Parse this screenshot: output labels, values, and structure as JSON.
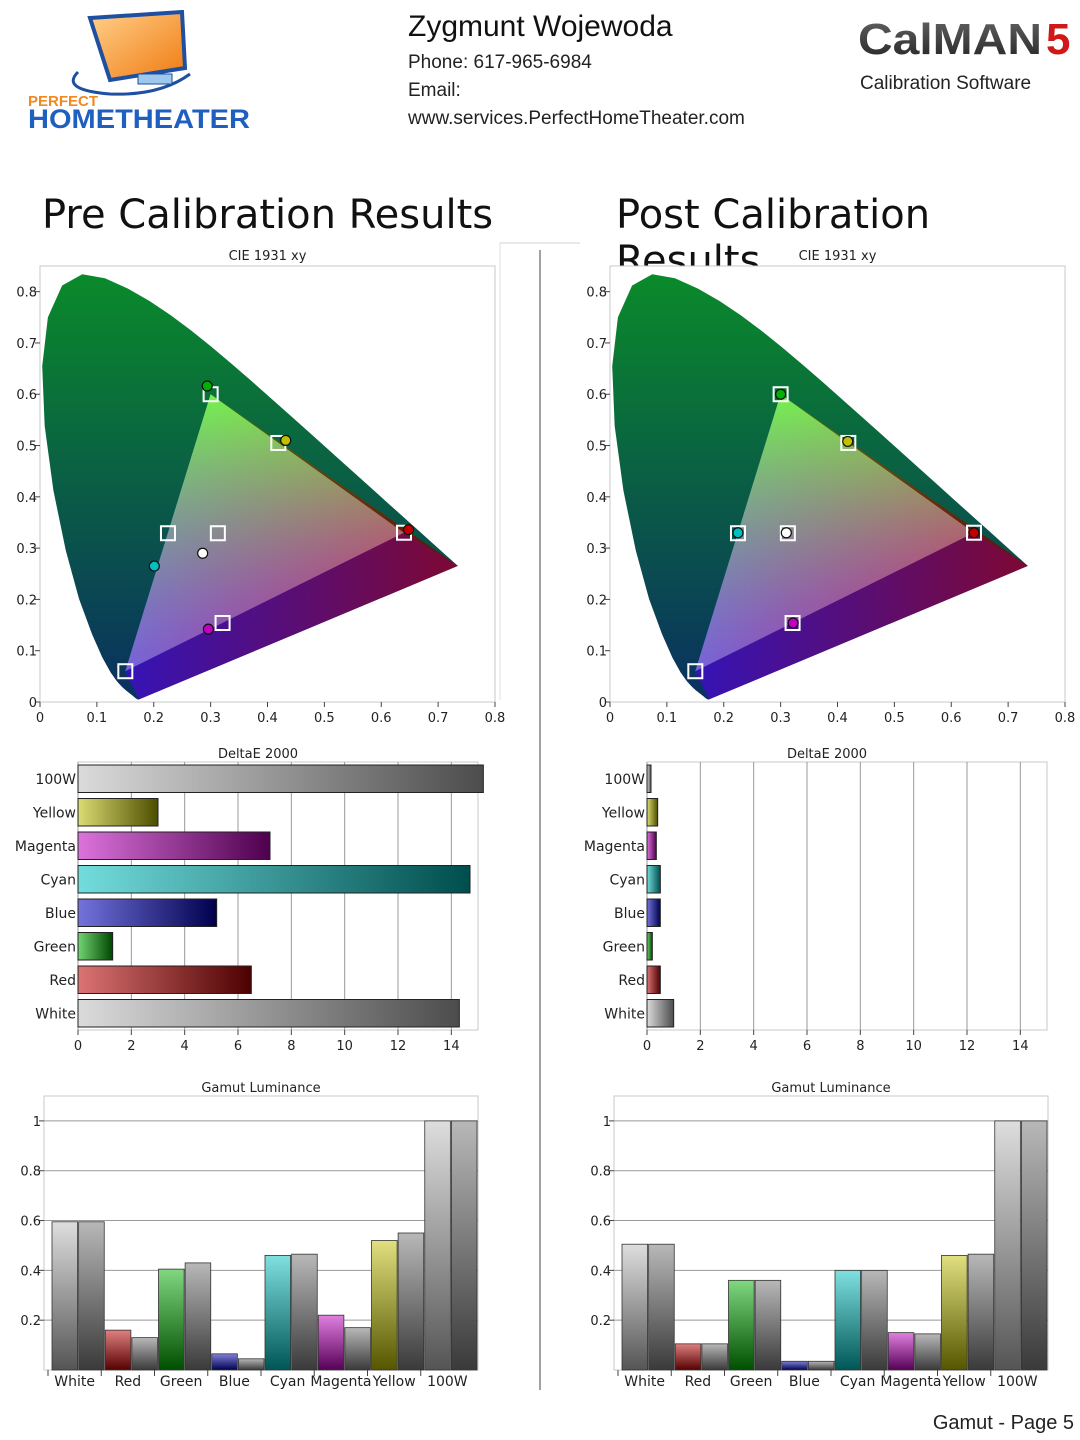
{
  "header": {
    "name": "Zygmunt Wojewoda",
    "phone": "Phone: 617-965-6984",
    "email": "Email:",
    "website": "www.services.PerfectHomeTheater.com",
    "logo_left_top": "PERFECT",
    "logo_left_bottom": "HOMETHEATER",
    "logo_right": "CalMAN",
    "logo_right_num": "5",
    "logo_right_sub": "Calibration Software"
  },
  "sections": {
    "pre_title": "Pre Calibration Results",
    "post_title": "Post Calibration Results"
  },
  "footer": "Gamut - Page 5",
  "colors": {
    "red": "#c00000",
    "green": "#00b000",
    "blue": "#0000b0",
    "cyan": "#00c0c0",
    "magenta": "#c000c0",
    "yellow": "#c0c000",
    "white": "#bdbdbd"
  },
  "chart_data": [
    {
      "id": "pre-cie",
      "type": "scatter",
      "title": "CIE 1931 xy",
      "xlim": [
        0,
        0.8
      ],
      "ylim": [
        0,
        0.85
      ],
      "xticks": [
        "0",
        "0.1",
        "0.2",
        "0.3",
        "0.4",
        "0.5",
        "0.6",
        "0.7",
        "0.8"
      ],
      "yticks": [
        "0",
        "0.1",
        "0.2",
        "0.3",
        "0.4",
        "0.5",
        "0.6",
        "0.7",
        "0.8"
      ],
      "targets": [
        {
          "name": "Red",
          "x": 0.64,
          "y": 0.33
        },
        {
          "name": "Green",
          "x": 0.3,
          "y": 0.6
        },
        {
          "name": "Blue",
          "x": 0.15,
          "y": 0.06
        },
        {
          "name": "Cyan",
          "x": 0.225,
          "y": 0.329
        },
        {
          "name": "Magenta",
          "x": 0.321,
          "y": 0.154
        },
        {
          "name": "Yellow",
          "x": 0.419,
          "y": 0.505
        },
        {
          "name": "White",
          "x": 0.3127,
          "y": 0.329
        }
      ],
      "measured": [
        {
          "name": "Red",
          "x": 0.648,
          "y": 0.336,
          "color": "#c00000"
        },
        {
          "name": "Green",
          "x": 0.294,
          "y": 0.616,
          "color": "#00b000"
        },
        {
          "name": "Cyan",
          "x": 0.201,
          "y": 0.265,
          "color": "#00c0c0"
        },
        {
          "name": "Magenta",
          "x": 0.296,
          "y": 0.142,
          "color": "#c000c0"
        },
        {
          "name": "Yellow",
          "x": 0.432,
          "y": 0.51,
          "color": "#c0c000"
        },
        {
          "name": "White",
          "x": 0.286,
          "y": 0.29,
          "color": "#ffffff"
        }
      ]
    },
    {
      "id": "post-cie",
      "type": "scatter",
      "title": "CIE 1931 xy",
      "xlim": [
        0,
        0.8
      ],
      "ylim": [
        0,
        0.85
      ],
      "xticks": [
        "0",
        "0.1",
        "0.2",
        "0.3",
        "0.4",
        "0.5",
        "0.6",
        "0.7",
        "0.8"
      ],
      "yticks": [
        "0",
        "0.1",
        "0.2",
        "0.3",
        "0.4",
        "0.5",
        "0.6",
        "0.7",
        "0.8"
      ],
      "targets": [
        {
          "name": "Red",
          "x": 0.64,
          "y": 0.33
        },
        {
          "name": "Green",
          "x": 0.3,
          "y": 0.6
        },
        {
          "name": "Blue",
          "x": 0.15,
          "y": 0.06
        },
        {
          "name": "Cyan",
          "x": 0.225,
          "y": 0.329
        },
        {
          "name": "Magenta",
          "x": 0.321,
          "y": 0.154
        },
        {
          "name": "Yellow",
          "x": 0.419,
          "y": 0.505
        },
        {
          "name": "White",
          "x": 0.3127,
          "y": 0.329
        }
      ],
      "measured": [
        {
          "name": "Red",
          "x": 0.64,
          "y": 0.33,
          "color": "#c00000"
        },
        {
          "name": "Green",
          "x": 0.3,
          "y": 0.6,
          "color": "#00b000"
        },
        {
          "name": "Cyan",
          "x": 0.225,
          "y": 0.33,
          "color": "#00c0c0"
        },
        {
          "name": "Magenta",
          "x": 0.322,
          "y": 0.154,
          "color": "#c000c0"
        },
        {
          "name": "Yellow",
          "x": 0.418,
          "y": 0.508,
          "color": "#c0c000"
        },
        {
          "name": "White",
          "x": 0.31,
          "y": 0.33,
          "color": "#ffffff"
        }
      ]
    },
    {
      "id": "pre-deltae",
      "type": "bar",
      "orientation": "horizontal",
      "title": "DeltaE 2000",
      "categories": [
        "100W",
        "Yellow",
        "Magenta",
        "Cyan",
        "Blue",
        "Green",
        "Red",
        "White"
      ],
      "values": [
        15.2,
        3.0,
        7.2,
        14.7,
        5.2,
        1.3,
        6.5,
        14.3
      ],
      "colors": [
        "#bdbdbd",
        "#c0c000",
        "#c000c0",
        "#00c0c0",
        "#0000c0",
        "#00b000",
        "#c00000",
        "#bdbdbd"
      ],
      "xlim": [
        0,
        15
      ],
      "xticks": [
        "0",
        "2",
        "4",
        "6",
        "8",
        "10",
        "12",
        "14"
      ]
    },
    {
      "id": "post-deltae",
      "type": "bar",
      "orientation": "horizontal",
      "title": "DeltaE 2000",
      "categories": [
        "100W",
        "Yellow",
        "Magenta",
        "Cyan",
        "Blue",
        "Green",
        "Red",
        "White"
      ],
      "values": [
        0.15,
        0.4,
        0.35,
        0.5,
        0.5,
        0.2,
        0.5,
        1.0
      ],
      "colors": [
        "#bdbdbd",
        "#c0c000",
        "#c000c0",
        "#00c0c0",
        "#0000c0",
        "#00b000",
        "#c00000",
        "#bdbdbd"
      ],
      "xlim": [
        0,
        15
      ],
      "xticks": [
        "0",
        "2",
        "4",
        "6",
        "8",
        "10",
        "12",
        "14"
      ]
    },
    {
      "id": "pre-luminance",
      "type": "bar",
      "title": "Gamut Luminance",
      "categories": [
        "White",
        "Red",
        "Green",
        "Blue",
        "Cyan",
        "Magenta",
        "Yellow",
        "100W"
      ],
      "series": [
        {
          "values": [
            0.595,
            0.16,
            0.405,
            0.065,
            0.46,
            0.22,
            0.52,
            1.0
          ],
          "colors": [
            "#bdbdbd",
            "#c00000",
            "#00b000",
            "#0000b0",
            "#00c0c0",
            "#c000c0",
            "#c0c000",
            "#bdbdbd"
          ]
        },
        {
          "values": [
            0.595,
            0.13,
            0.43,
            0.045,
            0.465,
            0.17,
            0.55,
            1.0
          ],
          "colors": [
            "#8a8a8a",
            "#8a8a8a",
            "#8a8a8a",
            "#8a8a8a",
            "#8a8a8a",
            "#8a8a8a",
            "#8a8a8a",
            "#8a8a8a"
          ]
        }
      ],
      "ylim": [
        0,
        1.1
      ],
      "yticks": [
        "0.2",
        "0.4",
        "0.6",
        "0.8",
        "1"
      ]
    },
    {
      "id": "post-luminance",
      "type": "bar",
      "title": "Gamut Luminance",
      "categories": [
        "White",
        "Red",
        "Green",
        "Blue",
        "Cyan",
        "Magenta",
        "Yellow",
        "100W"
      ],
      "series": [
        {
          "values": [
            0.505,
            0.105,
            0.36,
            0.035,
            0.4,
            0.15,
            0.46,
            1.0
          ],
          "colors": [
            "#bdbdbd",
            "#c00000",
            "#00b000",
            "#0000b0",
            "#00c0c0",
            "#c000c0",
            "#c0c000",
            "#bdbdbd"
          ]
        },
        {
          "values": [
            0.505,
            0.105,
            0.36,
            0.035,
            0.4,
            0.145,
            0.465,
            1.0
          ],
          "colors": [
            "#8a8a8a",
            "#8a8a8a",
            "#8a8a8a",
            "#8a8a8a",
            "#8a8a8a",
            "#8a8a8a",
            "#8a8a8a",
            "#8a8a8a"
          ]
        }
      ],
      "ylim": [
        0,
        1.1
      ],
      "yticks": [
        "0.2",
        "0.4",
        "0.6",
        "0.8",
        "1"
      ]
    }
  ]
}
